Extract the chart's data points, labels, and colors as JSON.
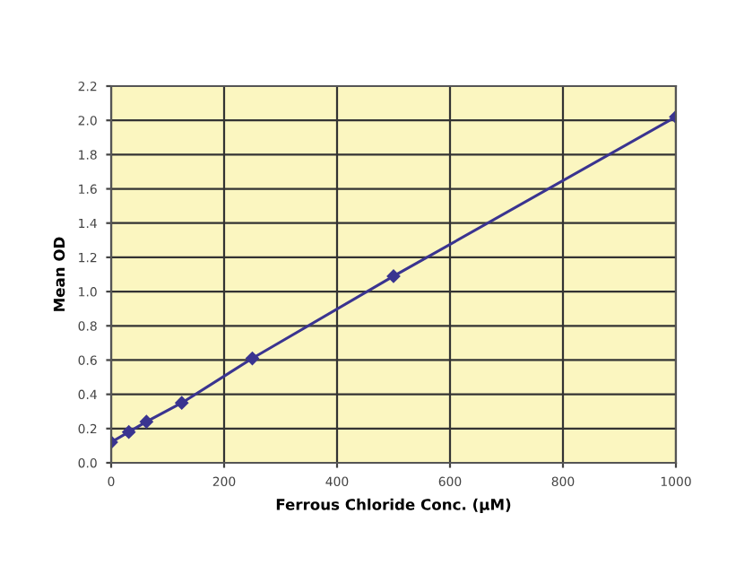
{
  "chart_data": {
    "type": "line",
    "xlabel": "Ferrous Chloride Conc. (µM)",
    "ylabel": "Mean OD",
    "x": [
      0,
      31.25,
      62.5,
      125,
      250,
      500,
      1000
    ],
    "series": [
      {
        "color": "#3a3490",
        "values": [
          0.12,
          0.18,
          0.24,
          0.35,
          0.61,
          1.09,
          2.02
        ]
      }
    ],
    "xlim": [
      0,
      1000
    ],
    "xticks": [
      0,
      200,
      400,
      600,
      800,
      1000
    ],
    "ylim": [
      0,
      2.2
    ],
    "yticks": [
      {
        "value": 0,
        "label": "0.0"
      },
      {
        "value": 0.2,
        "label": "0.2"
      },
      {
        "value": 0.4,
        "label": "0.4"
      },
      {
        "value": 0.6,
        "label": "0.6"
      },
      {
        "value": 0.8,
        "label": "0.8"
      },
      {
        "value": 1.0,
        "label": "1.0"
      },
      {
        "value": 1.2,
        "label": "1.2"
      },
      {
        "value": 1.4,
        "label": "1.4"
      },
      {
        "value": 1.6,
        "label": "1.6"
      },
      {
        "value": 1.8,
        "label": "1.8"
      },
      {
        "value": 2.0,
        "label": "2.0"
      },
      {
        "value": 2.2,
        "label": "2.2"
      }
    ],
    "grid": true,
    "marker": "diamond",
    "line_style": "solid",
    "legend": false
  }
}
